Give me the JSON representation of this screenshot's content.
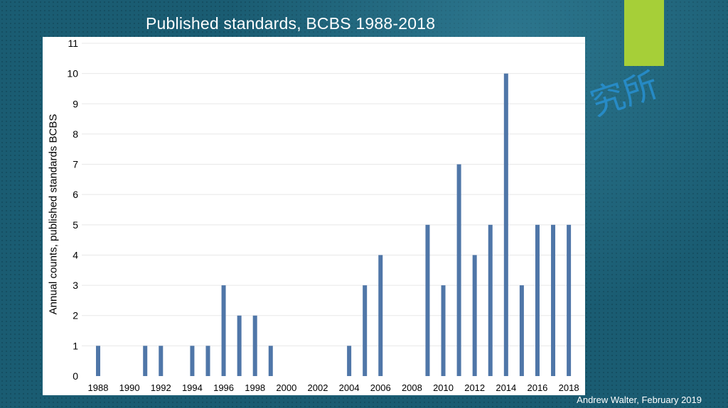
{
  "slide": {
    "title": "Published standards, BCBS 1988-2018",
    "credit": "Andrew Walter, February 2019",
    "watermark_text": "究所",
    "accent_color": "#a6cf38"
  },
  "chart_data": {
    "type": "bar",
    "title": "Published standards, BCBS 1988-2018",
    "xlabel": "",
    "ylabel": "Annual counts, published standards BCBS",
    "ylim": [
      0,
      11
    ],
    "yticks": [
      0,
      1,
      2,
      3,
      4,
      5,
      6,
      7,
      8,
      9,
      10,
      11
    ],
    "grid": true,
    "bar_color": "#4f76a8",
    "x": [
      1988,
      1989,
      1990,
      1991,
      1992,
      1993,
      1994,
      1995,
      1996,
      1997,
      1998,
      1999,
      2000,
      2001,
      2002,
      2003,
      2004,
      2005,
      2006,
      2007,
      2008,
      2009,
      2010,
      2011,
      2012,
      2013,
      2014,
      2015,
      2016,
      2017,
      2018
    ],
    "xtick_labels": [
      "1988",
      "1990",
      "1992",
      "1994",
      "1996",
      "1998",
      "2000",
      "2002",
      "2004",
      "2006",
      "2008",
      "2010",
      "2012",
      "2014",
      "2016",
      "2018"
    ],
    "values": [
      1,
      0,
      0,
      1,
      1,
      0,
      1,
      1,
      3,
      2,
      2,
      1,
      0,
      0,
      0,
      0,
      1,
      3,
      4,
      0,
      0,
      5,
      3,
      7,
      4,
      5,
      10,
      3,
      5,
      5,
      5
    ]
  }
}
